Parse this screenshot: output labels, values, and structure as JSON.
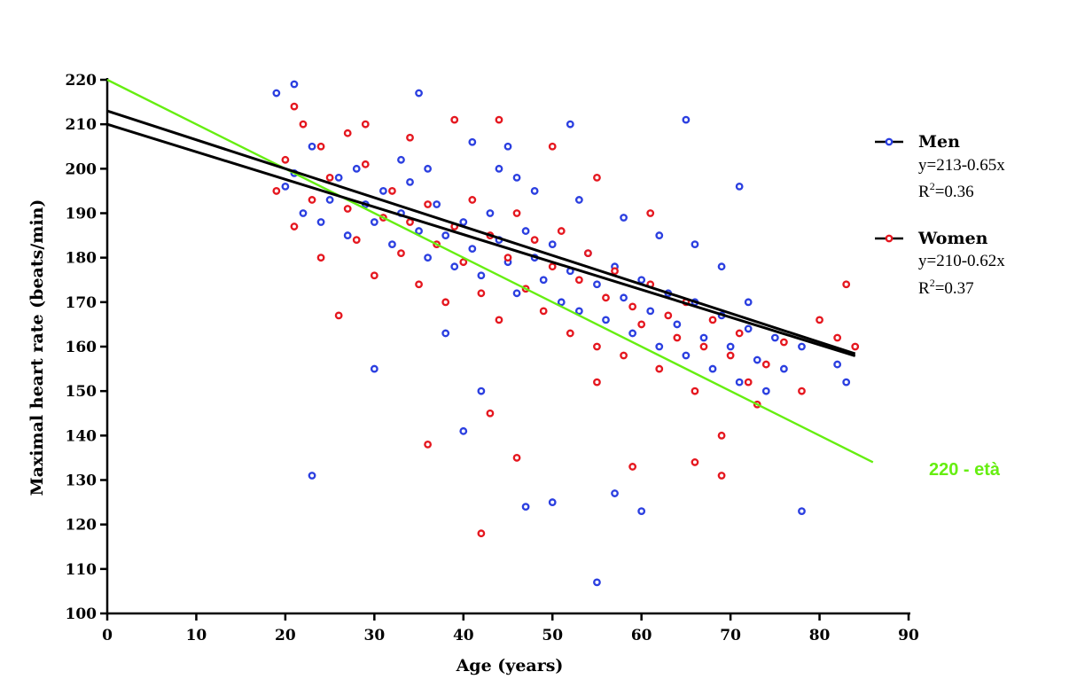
{
  "chart_data": {
    "type": "scatter",
    "xlabel": "Age (years)",
    "ylabel": "Maximal heart rate (beats/min)",
    "xlim": [
      0,
      90
    ],
    "ylim": [
      100,
      220
    ],
    "xticks": [
      0,
      10,
      20,
      30,
      40,
      50,
      60,
      70,
      80,
      90
    ],
    "yticks": [
      100,
      110,
      120,
      130,
      140,
      150,
      160,
      170,
      180,
      190,
      200,
      210,
      220
    ],
    "series": [
      {
        "name": "Men",
        "color": "#2b3fe0",
        "equation": "y=213-0.65x",
        "r2_prefix": "R",
        "r2_sup": "2",
        "r2_value": "=0.36",
        "fit": {
          "intercept": 213,
          "slope": -0.65,
          "x_range": [
            0,
            84
          ]
        },
        "points": [
          [
            20,
            196
          ],
          [
            21,
            199
          ],
          [
            22,
            190
          ],
          [
            23,
            205
          ],
          [
            24,
            188
          ],
          [
            25,
            193
          ],
          [
            26,
            198
          ],
          [
            27,
            185
          ],
          [
            28,
            200
          ],
          [
            29,
            192
          ],
          [
            30,
            188
          ],
          [
            31,
            195
          ],
          [
            32,
            183
          ],
          [
            33,
            190
          ],
          [
            34,
            197
          ],
          [
            35,
            186
          ],
          [
            36,
            180
          ],
          [
            37,
            192
          ],
          [
            38,
            185
          ],
          [
            39,
            178
          ],
          [
            40,
            188
          ],
          [
            41,
            182
          ],
          [
            42,
            176
          ],
          [
            43,
            190
          ],
          [
            44,
            184
          ],
          [
            45,
            179
          ],
          [
            46,
            172
          ],
          [
            47,
            186
          ],
          [
            48,
            180
          ],
          [
            49,
            175
          ],
          [
            50,
            183
          ],
          [
            51,
            170
          ],
          [
            52,
            177
          ],
          [
            53,
            168
          ],
          [
            54,
            181
          ],
          [
            55,
            174
          ],
          [
            56,
            166
          ],
          [
            57,
            178
          ],
          [
            58,
            171
          ],
          [
            59,
            163
          ],
          [
            60,
            175
          ],
          [
            61,
            168
          ],
          [
            62,
            160
          ],
          [
            63,
            172
          ],
          [
            64,
            165
          ],
          [
            65,
            158
          ],
          [
            66,
            170
          ],
          [
            67,
            162
          ],
          [
            68,
            155
          ],
          [
            69,
            167
          ],
          [
            70,
            160
          ],
          [
            71,
            152
          ],
          [
            72,
            164
          ],
          [
            73,
            157
          ],
          [
            74,
            150
          ],
          [
            75,
            162
          ],
          [
            76,
            155
          ],
          [
            78,
            160
          ],
          [
            82,
            156
          ],
          [
            83,
            152
          ],
          [
            19,
            217
          ],
          [
            21,
            219
          ],
          [
            23,
            131
          ],
          [
            35,
            217
          ],
          [
            40,
            141
          ],
          [
            47,
            124
          ],
          [
            50,
            125
          ],
          [
            55,
            107
          ],
          [
            57,
            127
          ],
          [
            60,
            123
          ],
          [
            65,
            211
          ],
          [
            71,
            196
          ],
          [
            78,
            123
          ],
          [
            30,
            155
          ],
          [
            45,
            205
          ],
          [
            52,
            210
          ],
          [
            38,
            163
          ],
          [
            42,
            150
          ],
          [
            44,
            200
          ],
          [
            48,
            195
          ],
          [
            33,
            202
          ],
          [
            36,
            200
          ],
          [
            41,
            206
          ],
          [
            46,
            198
          ],
          [
            53,
            193
          ],
          [
            58,
            189
          ],
          [
            62,
            185
          ],
          [
            66,
            183
          ],
          [
            69,
            178
          ],
          [
            72,
            170
          ]
        ]
      },
      {
        "name": "Women",
        "color": "#e5171f",
        "equation": "y=210-0.62x",
        "r2_prefix": "R",
        "r2_sup": "2",
        "r2_value": "=0.37",
        "fit": {
          "intercept": 210,
          "slope": -0.62,
          "x_range": [
            0,
            84
          ]
        },
        "points": [
          [
            19,
            195
          ],
          [
            20,
            202
          ],
          [
            21,
            187
          ],
          [
            22,
            210
          ],
          [
            23,
            193
          ],
          [
            24,
            180
          ],
          [
            25,
            198
          ],
          [
            26,
            167
          ],
          [
            27,
            191
          ],
          [
            28,
            184
          ],
          [
            29,
            201
          ],
          [
            30,
            176
          ],
          [
            31,
            189
          ],
          [
            32,
            195
          ],
          [
            33,
            181
          ],
          [
            34,
            188
          ],
          [
            35,
            174
          ],
          [
            36,
            192
          ],
          [
            37,
            183
          ],
          [
            38,
            170
          ],
          [
            39,
            187
          ],
          [
            40,
            179
          ],
          [
            41,
            193
          ],
          [
            42,
            172
          ],
          [
            43,
            185
          ],
          [
            44,
            166
          ],
          [
            45,
            180
          ],
          [
            46,
            190
          ],
          [
            47,
            173
          ],
          [
            48,
            184
          ],
          [
            49,
            168
          ],
          [
            50,
            178
          ],
          [
            51,
            186
          ],
          [
            52,
            163
          ],
          [
            53,
            175
          ],
          [
            54,
            181
          ],
          [
            55,
            160
          ],
          [
            56,
            171
          ],
          [
            57,
            177
          ],
          [
            58,
            158
          ],
          [
            59,
            169
          ],
          [
            60,
            165
          ],
          [
            61,
            174
          ],
          [
            62,
            155
          ],
          [
            63,
            167
          ],
          [
            64,
            162
          ],
          [
            65,
            170
          ],
          [
            66,
            150
          ],
          [
            67,
            160
          ],
          [
            68,
            166
          ],
          [
            69,
            140
          ],
          [
            70,
            158
          ],
          [
            71,
            163
          ],
          [
            72,
            152
          ],
          [
            73,
            147
          ],
          [
            74,
            156
          ],
          [
            76,
            161
          ],
          [
            78,
            150
          ],
          [
            80,
            166
          ],
          [
            82,
            162
          ],
          [
            84,
            160
          ],
          [
            83,
            174
          ],
          [
            42,
            118
          ],
          [
            36,
            138
          ],
          [
            46,
            135
          ],
          [
            59,
            133
          ],
          [
            66,
            134
          ],
          [
            69,
            131
          ],
          [
            43,
            145
          ],
          [
            55,
            152
          ],
          [
            21,
            214
          ],
          [
            24,
            205
          ],
          [
            27,
            208
          ],
          [
            29,
            210
          ],
          [
            34,
            207
          ],
          [
            39,
            211
          ],
          [
            44,
            211
          ],
          [
            50,
            205
          ],
          [
            55,
            198
          ],
          [
            61,
            190
          ]
        ]
      }
    ],
    "reference_line": {
      "label": "220 - età",
      "color": "#66ee11",
      "intercept": 220,
      "slope": -1,
      "x_range": [
        0,
        86
      ]
    }
  }
}
